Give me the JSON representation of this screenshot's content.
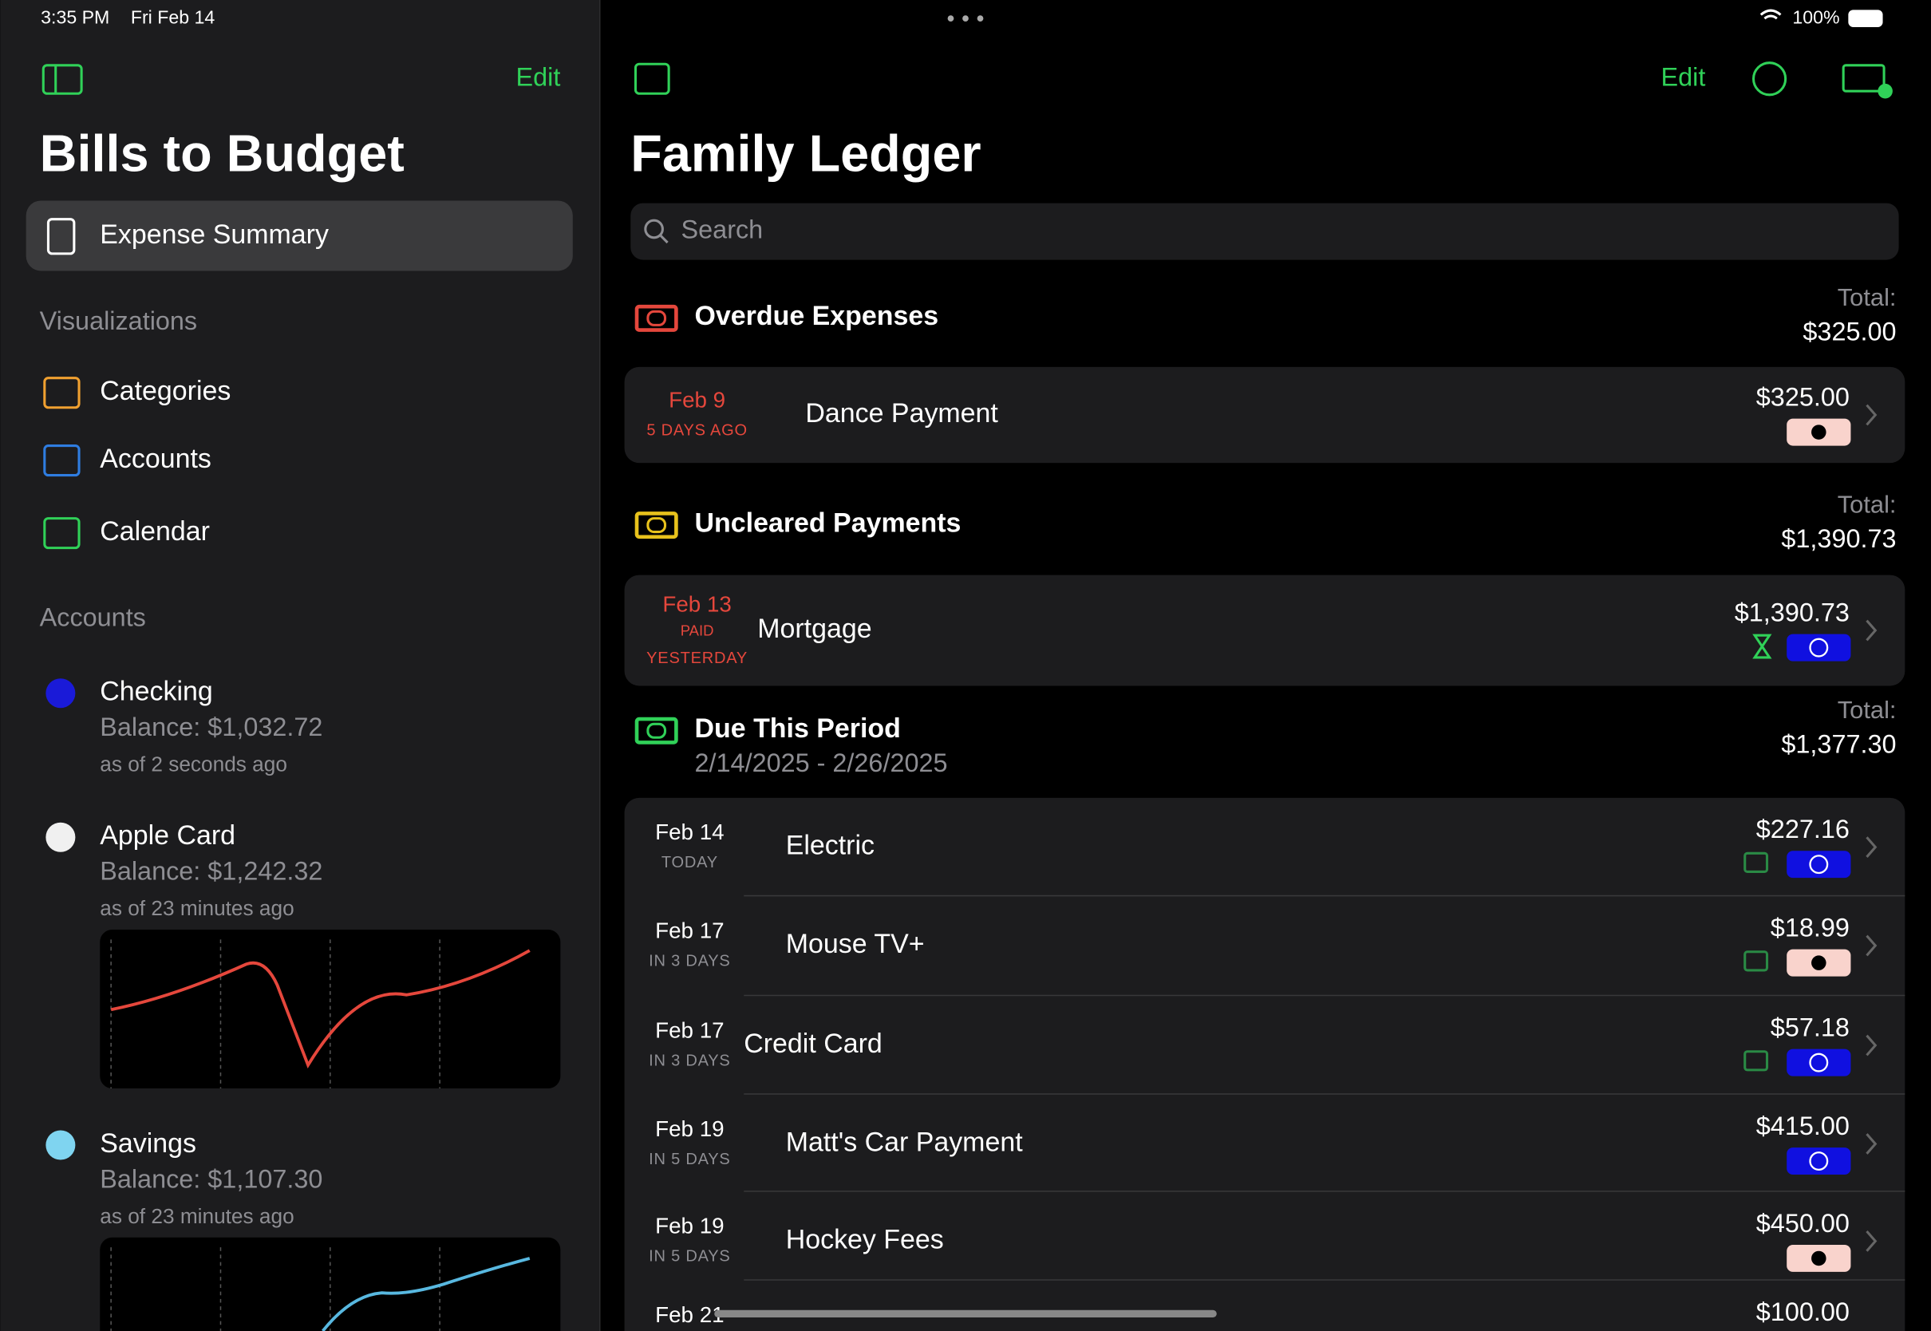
{
  "status_bar": {
    "time": "3:35 PM",
    "date": "Fri Feb 14",
    "battery": "100%"
  },
  "sidebar": {
    "edit": "Edit",
    "title": "Bills to Budget",
    "selected": "Expense Summary",
    "visualizations_header": "Visualizations",
    "visualizations": [
      "Categories",
      "Accounts",
      "Calendar"
    ],
    "accounts_header": "Accounts",
    "accounts": [
      {
        "name": "Checking",
        "balance": "Balance: $1,032.72",
        "updated": "as of 2 seconds ago"
      },
      {
        "name": "Apple Card",
        "balance": "Balance: $1,242.32",
        "updated": "as of 23 minutes ago"
      },
      {
        "name": "Savings",
        "balance": "Balance: $1,107.30",
        "updated": "as of 23 minutes ago"
      }
    ]
  },
  "main": {
    "edit": "Edit",
    "title": "Family Ledger",
    "search": "Search",
    "sections": [
      {
        "title": "Overdue Expenses",
        "total_label": "Total:",
        "total": "$325.00",
        "color": "#e5473c",
        "items": [
          {
            "date": "Feb 9",
            "relative": "5 DAYS AGO",
            "name": "Dance Payment",
            "amount": "$325.00",
            "badge": "apple"
          }
        ]
      },
      {
        "title": "Uncleared Payments",
        "total_label": "Total:",
        "total": "$1,390.73",
        "color": "#e8c21c",
        "items": [
          {
            "date": "Feb 13",
            "status": "PAID",
            "relative": "YESTERDAY",
            "name": "Mortgage",
            "amount": "$1,390.73",
            "badge": "card"
          }
        ]
      },
      {
        "title": "Due This Period",
        "subtitle": "2/14/2025 - 2/26/2025",
        "total_label": "Total:",
        "total": "$1,377.30",
        "color": "#30d158",
        "items": [
          {
            "date": "Feb 14",
            "relative": "TODAY",
            "name": "Electric",
            "amount": "$227.16",
            "badge": "card"
          },
          {
            "date": "Feb 17",
            "relative": "IN 3 DAYS",
            "name": "Mouse TV+",
            "amount": "$18.99",
            "badge": "apple"
          },
          {
            "date": "Feb 17",
            "relative": "IN 3 DAYS",
            "name": "Credit Card",
            "amount": "$57.18",
            "badge": "card"
          },
          {
            "date": "Feb 19",
            "relative": "IN 5 DAYS",
            "name": "Matt's Car Payment",
            "amount": "$415.00",
            "badge": "card"
          },
          {
            "date": "Feb 19",
            "relative": "IN 5 DAYS",
            "name": "Hockey Fees",
            "amount": "$450.00",
            "badge": "apple"
          },
          {
            "date": "Feb 21",
            "name": "",
            "amount": "$100.00"
          }
        ]
      }
    ]
  }
}
